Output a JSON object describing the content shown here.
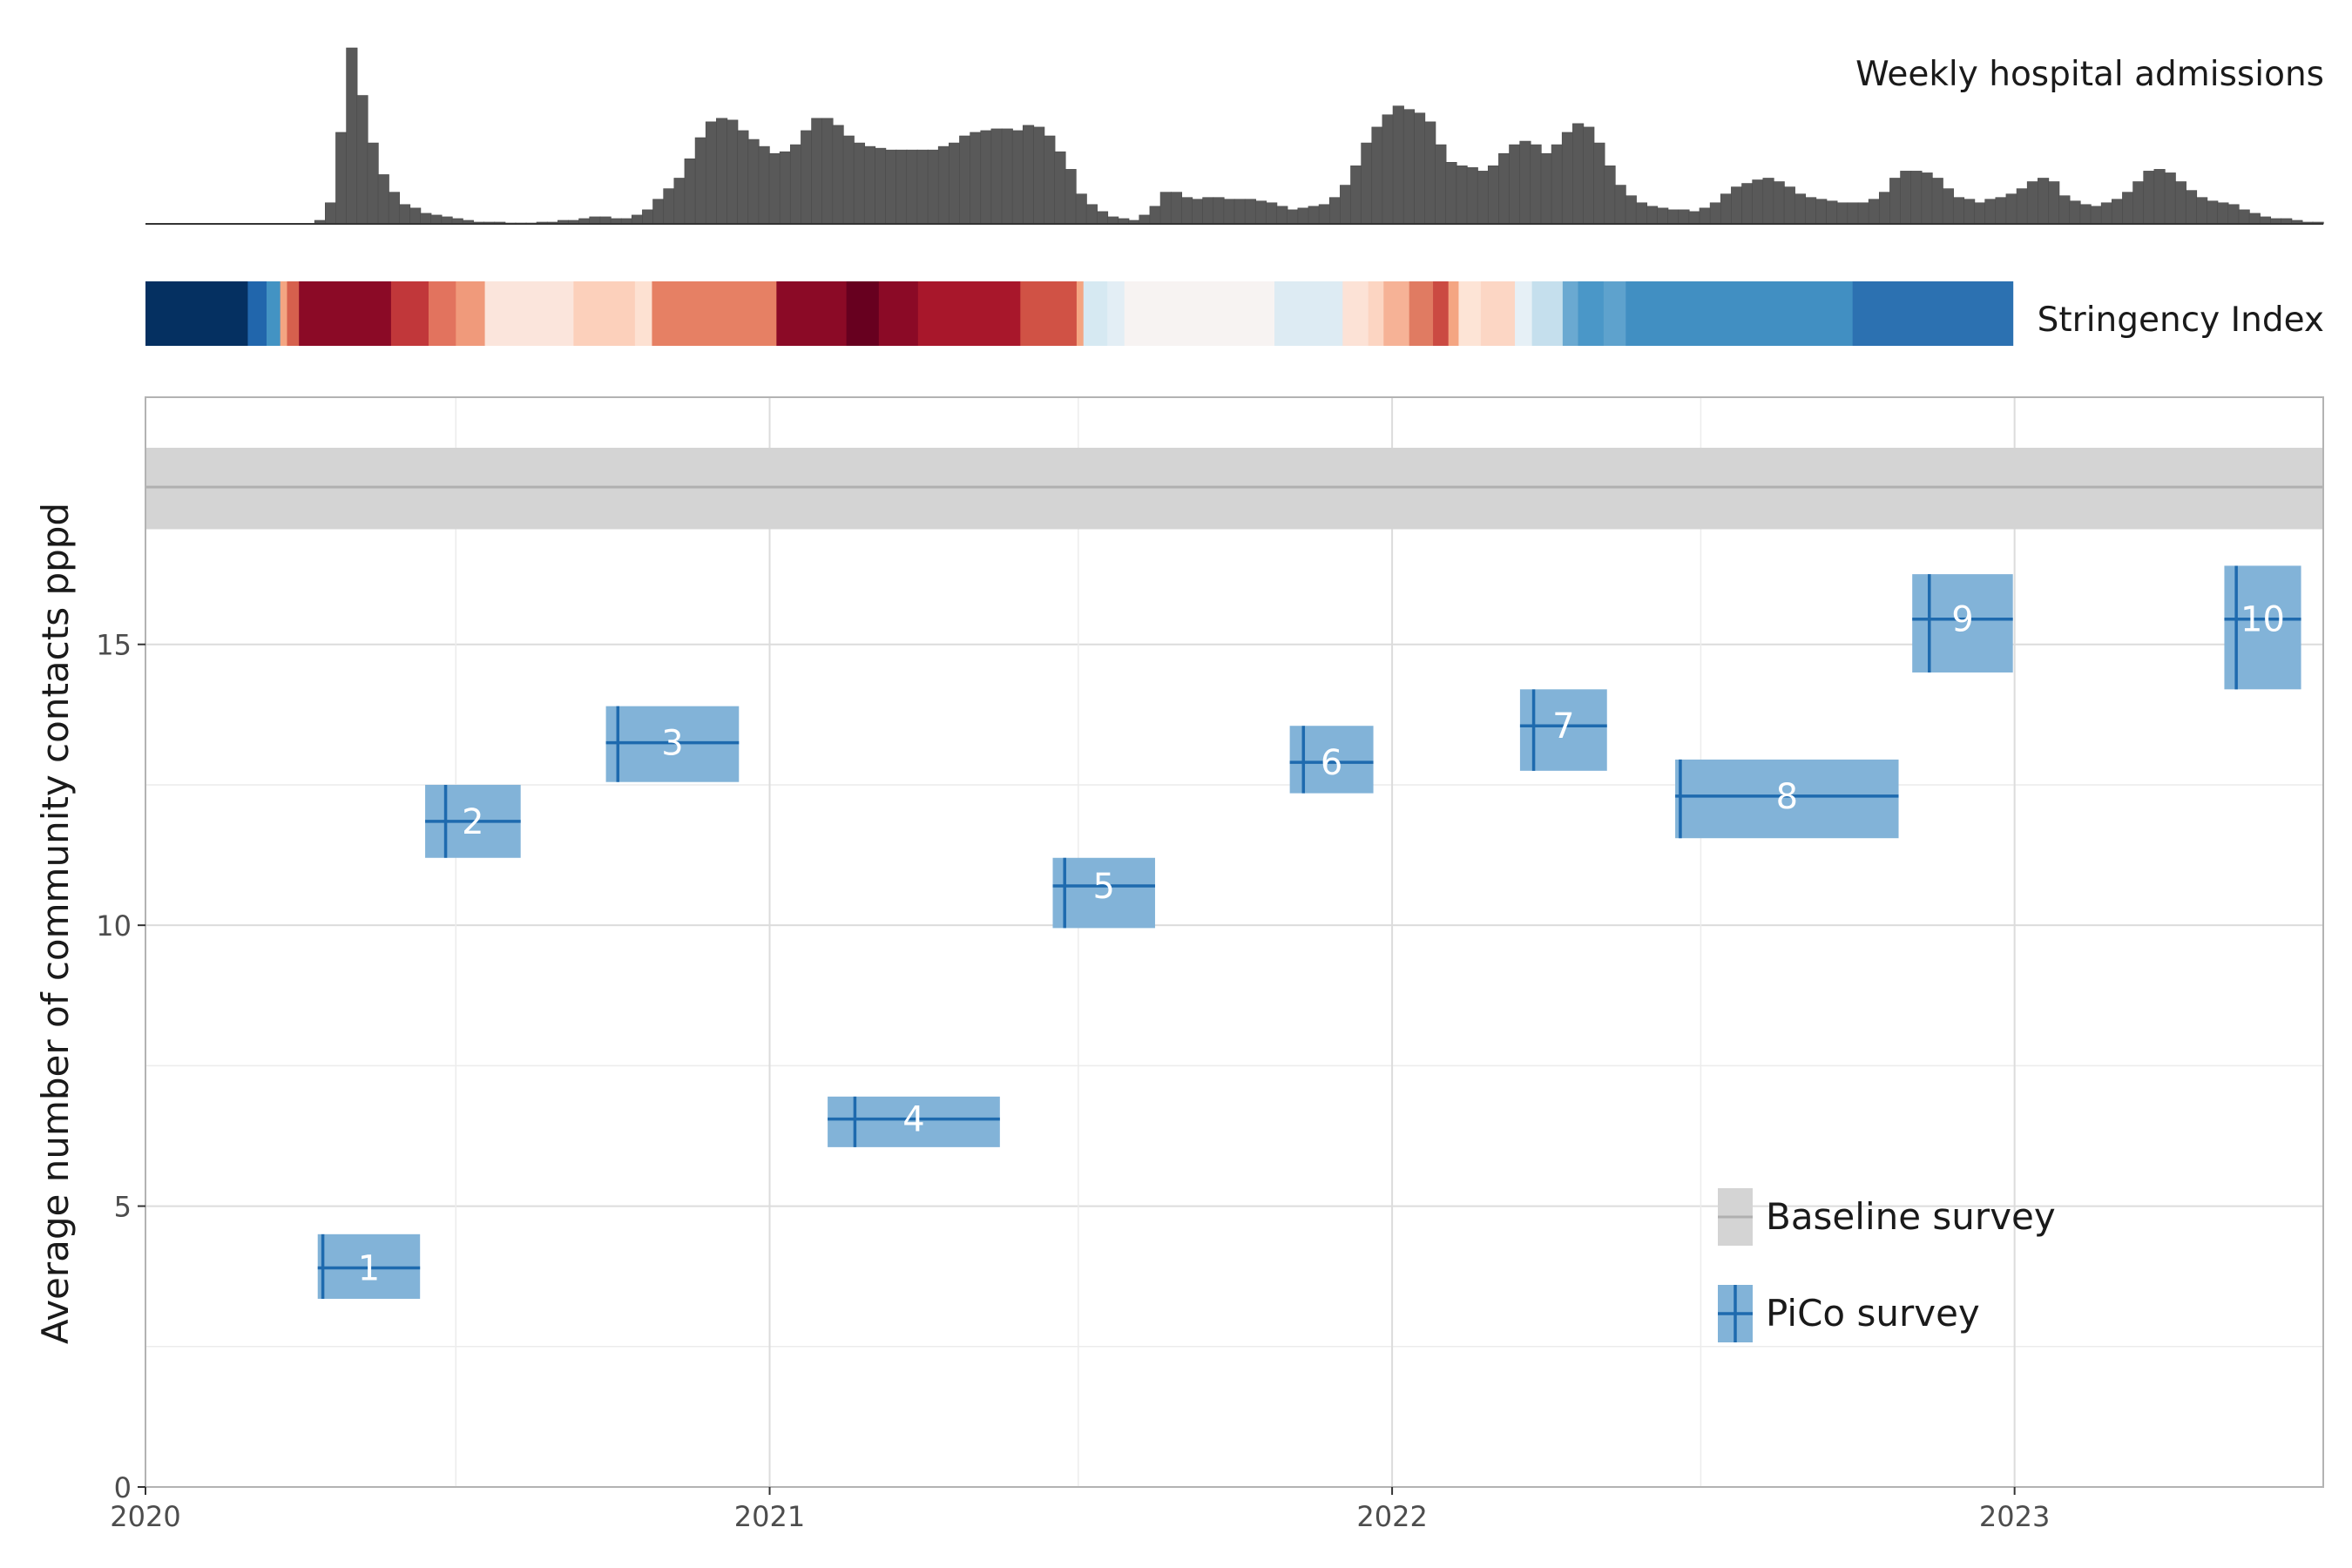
{
  "chart_data": {
    "type": "mixed",
    "admissions_panel": {
      "label": "Weekly hospital admissions",
      "type": "bar",
      "x_start": "2020-01-01",
      "x_end": "2023-07-01",
      "bar_color": "#595959",
      "weekly_values": [
        0,
        0,
        0,
        0,
        0,
        0,
        0,
        0,
        0,
        0,
        0,
        0,
        0,
        0,
        0,
        0,
        2,
        12,
        52,
        100,
        73,
        46,
        28,
        18,
        11,
        9,
        6,
        5,
        4,
        3,
        2,
        1,
        1,
        1,
        0.5,
        0.5,
        0.5,
        1,
        1,
        2,
        2,
        3,
        4,
        4,
        3,
        3,
        5,
        8,
        14,
        20,
        26,
        37,
        49,
        58,
        60,
        59,
        53,
        48,
        44,
        40,
        41,
        45,
        53,
        60,
        60,
        56,
        50,
        46,
        44,
        43,
        42,
        42,
        42,
        42,
        42,
        44,
        46,
        50,
        52,
        53,
        54,
        54,
        53,
        56,
        55,
        50,
        41,
        31,
        17,
        11,
        7,
        4,
        3,
        2,
        5,
        10,
        18,
        18,
        15,
        14,
        15,
        15,
        14,
        14,
        14,
        13,
        12,
        10,
        8,
        9,
        10,
        11,
        15,
        22,
        33,
        46,
        55,
        62,
        67,
        65,
        63,
        58,
        45,
        35,
        33,
        32,
        30,
        33,
        40,
        45,
        47,
        45,
        40,
        45,
        52,
        57,
        55,
        46,
        33,
        22,
        16,
        12,
        10,
        9,
        8,
        8,
        7,
        9,
        12,
        17,
        21,
        23,
        25,
        26,
        24,
        21,
        17,
        15,
        14,
        13,
        12,
        12,
        12,
        14,
        18,
        26,
        30,
        30,
        29,
        26,
        20,
        15,
        14,
        12,
        14,
        15,
        17,
        20,
        24,
        26,
        24,
        16,
        13,
        11,
        10,
        12,
        14,
        18,
        24,
        30,
        31,
        29,
        24,
        19,
        15,
        13,
        12,
        11,
        8,
        6,
        4,
        3,
        3,
        2,
        1,
        1
      ]
    },
    "stringency_panel": {
      "label": "Stringency Index",
      "type": "heatmap",
      "segments": [
        {
          "start": "2020-01-01",
          "end": "2020-03-01",
          "color": "#053061"
        },
        {
          "start": "2020-03-01",
          "end": "2020-03-12",
          "color": "#2166ac"
        },
        {
          "start": "2020-03-12",
          "end": "2020-03-20",
          "color": "#4393c3"
        },
        {
          "start": "2020-03-20",
          "end": "2020-03-24",
          "color": "#f4a582"
        },
        {
          "start": "2020-03-24",
          "end": "2020-03-31",
          "color": "#d6604d"
        },
        {
          "start": "2020-03-31",
          "end": "2020-05-24",
          "color": "#8b0a26"
        },
        {
          "start": "2020-05-24",
          "end": "2020-06-15",
          "color": "#c1373a"
        },
        {
          "start": "2020-06-15",
          "end": "2020-07-01",
          "color": "#e2735e"
        },
        {
          "start": "2020-07-01",
          "end": "2020-07-18",
          "color": "#f09a7b"
        },
        {
          "start": "2020-07-18",
          "end": "2020-09-08",
          "color": "#fbe5dc"
        },
        {
          "start": "2020-09-08",
          "end": "2020-10-14",
          "color": "#fcd0bb"
        },
        {
          "start": "2020-10-14",
          "end": "2020-10-24",
          "color": "#fde1d2"
        },
        {
          "start": "2020-10-24",
          "end": "2021-01-05",
          "color": "#e68064"
        },
        {
          "start": "2021-01-05",
          "end": "2021-02-15",
          "color": "#8b0a26"
        },
        {
          "start": "2021-02-15",
          "end": "2021-03-06",
          "color": "#67001f"
        },
        {
          "start": "2021-03-06",
          "end": "2021-03-29",
          "color": "#8b0a26"
        },
        {
          "start": "2021-03-29",
          "end": "2021-05-28",
          "color": "#a8172b"
        },
        {
          "start": "2021-05-28",
          "end": "2021-06-30",
          "color": "#d05245"
        },
        {
          "start": "2021-06-30",
          "end": "2021-07-04",
          "color": "#f4a582"
        },
        {
          "start": "2021-07-04",
          "end": "2021-07-18",
          "color": "#d6e9f2"
        },
        {
          "start": "2021-07-18",
          "end": "2021-07-28",
          "color": "#e3eef5"
        },
        {
          "start": "2021-07-28",
          "end": "2021-10-24",
          "color": "#f7f3f2"
        },
        {
          "start": "2021-10-24",
          "end": "2021-12-03",
          "color": "#ddebf3"
        },
        {
          "start": "2021-12-03",
          "end": "2021-12-18",
          "color": "#fce2d6"
        },
        {
          "start": "2021-12-18",
          "end": "2021-12-27",
          "color": "#fcd5c2"
        },
        {
          "start": "2021-12-27",
          "end": "2022-01-11",
          "color": "#f6b296"
        },
        {
          "start": "2022-01-11",
          "end": "2022-01-25",
          "color": "#e07b62"
        },
        {
          "start": "2022-01-25",
          "end": "2022-02-03",
          "color": "#cb4a42"
        },
        {
          "start": "2022-02-03",
          "end": "2022-02-09",
          "color": "#f4a582"
        },
        {
          "start": "2022-02-09",
          "end": "2022-02-22",
          "color": "#fde4d6"
        },
        {
          "start": "2022-02-22",
          "end": "2022-03-14",
          "color": "#fcd6c4"
        },
        {
          "start": "2022-03-14",
          "end": "2022-03-24",
          "color": "#e6f0f6"
        },
        {
          "start": "2022-03-24",
          "end": "2022-04-11",
          "color": "#c5dfed"
        },
        {
          "start": "2022-04-11",
          "end": "2022-04-20",
          "color": "#6aa9d1"
        },
        {
          "start": "2022-04-20",
          "end": "2022-05-05",
          "color": "#4a97c8"
        },
        {
          "start": "2022-05-05",
          "end": "2022-05-18",
          "color": "#5ea2cd"
        },
        {
          "start": "2022-05-18",
          "end": "2022-09-28",
          "color": "#418fc2"
        },
        {
          "start": "2022-09-28",
          "end": "2022-12-31",
          "color": "#2c71b1"
        }
      ]
    },
    "main_panel": {
      "type": "box_cross",
      "ylabel": "Average number of community contacts pppd",
      "xlabel": "",
      "x_ticks": [
        "2020",
        "2021",
        "2022",
        "2023"
      ],
      "y_ticks": [
        0,
        5,
        10,
        15
      ],
      "ylim": [
        0,
        19.4
      ],
      "xlim": [
        "2020-01-01",
        "2023-07-01"
      ],
      "grid": true,
      "baseline": {
        "name": "Baseline survey",
        "value": 17.8,
        "lower": 17.05,
        "upper": 18.5,
        "line_color": "#b0b0b0",
        "band_color": "#d4d4d4"
      },
      "pico": {
        "name": "PiCo survey",
        "box_color": "#82b3d8",
        "line_color": "#1e6aae",
        "label_color": "#ffffff",
        "surveys": [
          {
            "label": "1",
            "start": "2020-04-11",
            "end": "2020-06-10",
            "median_date": "2020-04-14",
            "value": 3.9,
            "lower": 3.35,
            "upper": 4.5
          },
          {
            "label": "2",
            "start": "2020-06-13",
            "end": "2020-08-08",
            "median_date": "2020-06-25",
            "value": 11.85,
            "lower": 11.2,
            "upper": 12.5
          },
          {
            "label": "3",
            "start": "2020-09-27",
            "end": "2020-12-14",
            "median_date": "2020-10-04",
            "value": 13.25,
            "lower": 12.55,
            "upper": 13.9
          },
          {
            "label": "4",
            "start": "2021-02-04",
            "end": "2021-05-16",
            "median_date": "2021-02-20",
            "value": 6.55,
            "lower": 6.05,
            "upper": 6.95
          },
          {
            "label": "5",
            "start": "2021-06-16",
            "end": "2021-08-15",
            "median_date": "2021-06-23",
            "value": 10.7,
            "lower": 9.95,
            "upper": 11.2
          },
          {
            "label": "6",
            "start": "2021-11-02",
            "end": "2021-12-21",
            "median_date": "2021-11-10",
            "value": 12.9,
            "lower": 12.35,
            "upper": 13.55
          },
          {
            "label": "7",
            "start": "2022-03-17",
            "end": "2022-05-07",
            "median_date": "2022-03-25",
            "value": 13.55,
            "lower": 12.75,
            "upper": 14.2
          },
          {
            "label": "8",
            "start": "2022-06-16",
            "end": "2022-10-25",
            "median_date": "2022-06-19",
            "value": 12.3,
            "lower": 11.55,
            "upper": 12.95
          },
          {
            "label": "9",
            "start": "2022-11-02",
            "end": "2022-12-31",
            "median_date": "2022-11-12",
            "value": 15.45,
            "lower": 14.5,
            "upper": 16.25
          },
          {
            "label": "10",
            "start": "2023-05-04",
            "end": "2023-06-18",
            "median_date": "2023-05-11",
            "value": 15.45,
            "lower": 14.2,
            "upper": 16.4
          }
        ]
      },
      "legend": {
        "placement": "bottom-right-inside",
        "entries": [
          "Baseline survey",
          "PiCo survey"
        ]
      }
    }
  }
}
